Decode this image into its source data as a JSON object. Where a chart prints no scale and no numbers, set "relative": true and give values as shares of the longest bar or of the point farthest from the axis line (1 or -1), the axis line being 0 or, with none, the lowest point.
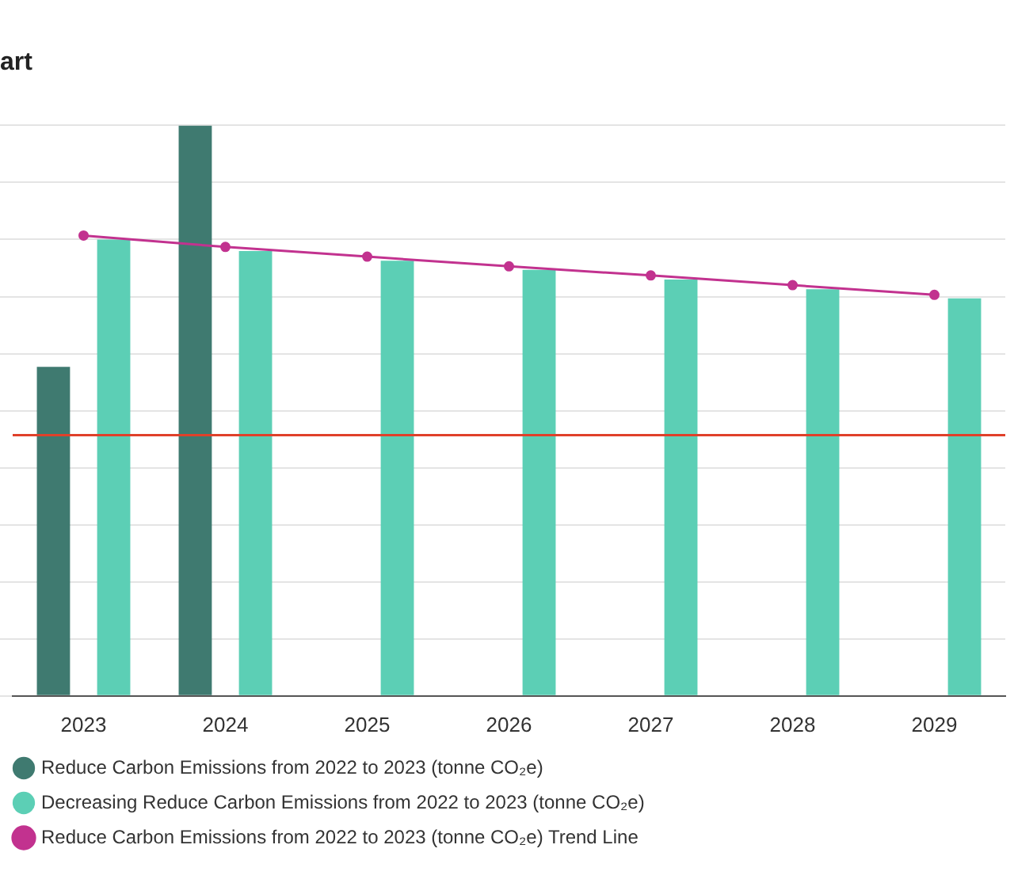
{
  "chart_data": {
    "type": "bar",
    "title": "art",
    "relative": true,
    "grid": "y",
    "legend": "bottom",
    "categories": [
      "2023",
      "2024",
      "2025",
      "2026",
      "2027",
      "2028",
      "2029"
    ],
    "series": [
      {
        "name": "Reduce Carbon Emissions from 2022 to 2023 (tonne CO₂e)",
        "color": "#3f7a70",
        "values": [
          0.577,
          1,
          null,
          null,
          null,
          null,
          null
        ]
      },
      {
        "name": "Decreasing Reduce Carbon Emissions from 2022 to 2023 (tonne CO₂e)",
        "color": "#5ccfb5",
        "values": [
          0.8,
          0.78,
          0.763,
          0.747,
          0.73,
          0.713,
          0.697
        ]
      },
      {
        "name": "Reduce Carbon Emissions from 2022 to 2023 (tonne CO₂e) Trend Line",
        "type": "line",
        "color": "#c2328f",
        "marker": "circle",
        "line_style": "solid",
        "values": [
          0.807,
          0.787,
          0.77,
          0.753,
          0.737,
          0.72,
          0.703
        ]
      }
    ],
    "ref_lines": [
      {
        "axis": "y",
        "value": 0.457,
        "color": "#e0402a"
      }
    ]
  }
}
